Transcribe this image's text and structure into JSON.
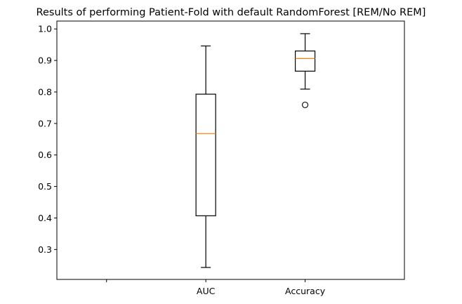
{
  "chart_data": {
    "type": "box",
    "title": "Results of performing Patient-Fold with default RandomForest [REM/No REM]",
    "xlabel": "",
    "ylabel": "",
    "x_ticks": [
      "",
      "AUC",
      "Accuracy"
    ],
    "ylim": [
      0.205,
      1.025
    ],
    "y_ticks": [
      0.3,
      0.4,
      0.5,
      0.6,
      0.7,
      0.8,
      0.9,
      1.0
    ],
    "y_tick_labels": [
      "0.3",
      "0.4",
      "0.5",
      "0.6",
      "0.7",
      "0.8",
      "0.9",
      "1.0"
    ],
    "grid": false,
    "series": [
      {
        "category": "AUC",
        "whisker_low": 0.243,
        "q1": 0.407,
        "median": 0.668,
        "q3": 0.793,
        "whisker_high": 0.946,
        "outliers": []
      },
      {
        "category": "Accuracy",
        "whisker_low": 0.809,
        "q1": 0.866,
        "median": 0.906,
        "q3": 0.93,
        "whisker_high": 0.985,
        "outliers": [
          0.759
        ]
      }
    ],
    "colors": {
      "box": "#000000",
      "median": "#ff7f0e",
      "outlier": "#000000"
    }
  }
}
